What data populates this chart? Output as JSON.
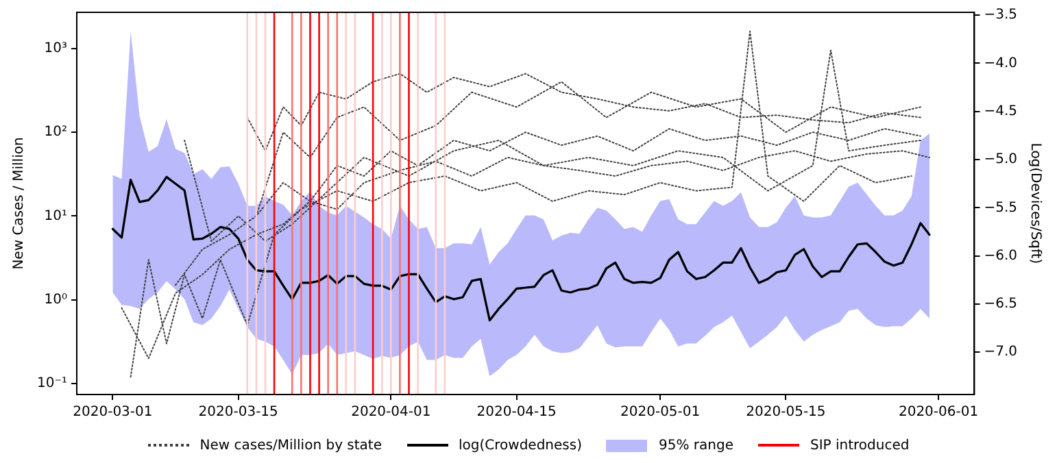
{
  "chart_data": {
    "type": "line",
    "xlabel": null,
    "ylabel": "New Cases / Million",
    "y2label": "Log(Devices/Sqft)",
    "x": [
      "2020-03-01",
      "2020-03-02",
      "2020-03-03",
      "2020-03-04",
      "2020-03-05",
      "2020-03-06",
      "2020-03-07",
      "2020-03-08",
      "2020-03-09",
      "2020-03-10",
      "2020-03-11",
      "2020-03-12",
      "2020-03-13",
      "2020-03-14",
      "2020-03-15",
      "2020-03-16",
      "2020-03-17",
      "2020-03-18",
      "2020-03-19",
      "2020-03-20",
      "2020-03-21",
      "2020-03-22",
      "2020-03-23",
      "2020-03-24",
      "2020-03-25",
      "2020-03-26",
      "2020-03-27",
      "2020-03-28",
      "2020-03-29",
      "2020-03-30",
      "2020-03-31",
      "2020-04-01",
      "2020-04-02",
      "2020-04-03",
      "2020-04-04",
      "2020-04-05",
      "2020-04-06",
      "2020-04-07",
      "2020-04-08",
      "2020-04-09",
      "2020-04-10",
      "2020-04-11",
      "2020-04-12",
      "2020-04-13",
      "2020-04-14",
      "2020-04-15",
      "2020-04-16",
      "2020-04-17",
      "2020-04-18",
      "2020-04-19",
      "2020-04-20",
      "2020-04-21",
      "2020-04-22",
      "2020-04-23",
      "2020-04-24",
      "2020-04-25",
      "2020-04-26",
      "2020-04-27",
      "2020-04-28",
      "2020-04-29",
      "2020-04-30",
      "2020-05-01",
      "2020-05-02",
      "2020-05-03",
      "2020-05-04",
      "2020-05-05",
      "2020-05-06",
      "2020-05-07",
      "2020-05-08",
      "2020-05-09",
      "2020-05-10",
      "2020-05-11",
      "2020-05-12",
      "2020-05-13",
      "2020-05-14",
      "2020-05-15",
      "2020-05-16",
      "2020-05-17",
      "2020-05-18",
      "2020-05-19",
      "2020-05-20",
      "2020-05-21",
      "2020-05-22",
      "2020-05-23",
      "2020-05-24",
      "2020-05-25",
      "2020-05-26",
      "2020-05-27",
      "2020-05-28",
      "2020-05-29",
      "2020-05-30",
      "2020-05-31"
    ],
    "series": [
      {
        "type": "line",
        "name": "New cases/Million by state",
        "color": "#404040",
        "line_style": "dotted",
        "x": [
          "2020-03-16",
          "2020-03-18",
          "2020-03-20",
          "2020-03-22",
          "2020-03-24",
          "2020-03-27",
          "2020-03-30",
          "2020-04-02",
          "2020-04-05",
          "2020-04-08",
          "2020-04-12",
          "2020-04-16",
          "2020-04-20",
          "2020-04-24",
          "2020-04-28",
          "2020-05-02",
          "2020-05-06",
          "2020-05-10",
          "2020-05-14",
          "2020-05-18",
          "2020-05-22",
          "2020-05-26",
          "2020-05-30"
        ],
        "values": [
          150,
          60,
          200,
          120,
          300,
          250,
          400,
          500,
          300,
          450,
          350,
          500,
          300,
          250,
          200,
          180,
          220,
          150,
          160,
          140,
          130,
          170,
          150
        ]
      },
      {
        "type": "line",
        "color": "#404040",
        "line_style": "dotted",
        "x": [
          "2020-03-08",
          "2020-03-11",
          "2020-03-14",
          "2020-03-17",
          "2020-03-20",
          "2020-03-23",
          "2020-03-26",
          "2020-03-29",
          "2020-04-01",
          "2020-04-04",
          "2020-04-08",
          "2020-04-12",
          "2020-04-16",
          "2020-04-20",
          "2020-04-24",
          "2020-04-28",
          "2020-05-02",
          "2020-05-06",
          "2020-05-10",
          "2020-05-14",
          "2020-05-18",
          "2020-05-22",
          "2020-05-26",
          "2020-05-30"
        ],
        "values": [
          1.5,
          4,
          6,
          10,
          25,
          15,
          40,
          30,
          60,
          40,
          80,
          60,
          100,
          70,
          90,
          60,
          110,
          80,
          90,
          70,
          100,
          80,
          110,
          90
        ]
      },
      {
        "type": "line",
        "color": "#404040",
        "line_style": "dotted",
        "x": [
          "2020-03-02",
          "2020-03-05",
          "2020-03-08",
          "2020-03-11",
          "2020-03-14",
          "2020-03-17",
          "2020-03-20",
          "2020-03-23",
          "2020-03-26",
          "2020-03-29",
          "2020-04-02",
          "2020-04-06",
          "2020-04-10",
          "2020-04-14",
          "2020-04-18",
          "2020-04-22",
          "2020-04-26",
          "2020-04-30",
          "2020-05-04",
          "2020-05-08",
          "2020-05-12",
          "2020-05-16",
          "2020-05-20",
          "2020-05-24",
          "2020-05-28",
          "2020-05-31"
        ],
        "values": [
          0.8,
          0.2,
          1.2,
          2,
          4,
          6,
          8,
          15,
          12,
          25,
          35,
          45,
          30,
          50,
          40,
          35,
          30,
          40,
          45,
          35,
          50,
          60,
          45,
          55,
          60,
          50
        ]
      },
      {
        "type": "line",
        "color": "#404040",
        "line_style": "dotted",
        "x": [
          "2020-03-03",
          "2020-03-05",
          "2020-03-07",
          "2020-03-09",
          "2020-03-11",
          "2020-03-13",
          "2020-03-16",
          "2020-03-19",
          "2020-03-22",
          "2020-03-26",
          "2020-03-30",
          "2020-04-03",
          "2020-04-07",
          "2020-04-11",
          "2020-04-15",
          "2020-04-19",
          "2020-04-23",
          "2020-04-27",
          "2020-05-01",
          "2020-05-05",
          "2020-05-09",
          "2020-05-11",
          "2020-05-13",
          "2020-05-17",
          "2020-05-21",
          "2020-05-25",
          "2020-05-29"
        ],
        "values": [
          0.12,
          3,
          0.3,
          2,
          0.6,
          3,
          0.5,
          6,
          12,
          20,
          15,
          25,
          30,
          20,
          25,
          15,
          20,
          18,
          25,
          20,
          22,
          1600,
          30,
          15,
          40,
          25,
          30
        ]
      },
      {
        "type": "line",
        "color": "#404040",
        "line_style": "dotted",
        "x": [
          "2020-03-09",
          "2020-03-12",
          "2020-03-15",
          "2020-03-18",
          "2020-03-21",
          "2020-03-25",
          "2020-03-29",
          "2020-04-03",
          "2020-04-08",
          "2020-04-13",
          "2020-04-18",
          "2020-04-23",
          "2020-04-28",
          "2020-05-03",
          "2020-05-08",
          "2020-05-13",
          "2020-05-18",
          "2020-05-20",
          "2020-05-22",
          "2020-05-26",
          "2020-05-30"
        ],
        "values": [
          80,
          5,
          10,
          5,
          8,
          20,
          50,
          30,
          60,
          80,
          40,
          50,
          40,
          60,
          50,
          20,
          40,
          950,
          60,
          70,
          80
        ]
      },
      {
        "type": "line",
        "color": "#404040",
        "line_style": "dotted",
        "x": [
          "2020-03-17",
          "2020-03-20",
          "2020-03-23",
          "2020-03-26",
          "2020-03-29",
          "2020-04-02",
          "2020-04-06",
          "2020-04-10",
          "2020-04-15",
          "2020-04-20",
          "2020-04-25",
          "2020-04-30",
          "2020-05-05",
          "2020-05-10",
          "2020-05-15",
          "2020-05-20",
          "2020-05-25",
          "2020-05-30"
        ],
        "values": [
          10,
          100,
          50,
          150,
          200,
          80,
          120,
          300,
          200,
          400,
          150,
          300,
          200,
          250,
          100,
          200,
          150,
          200
        ]
      },
      {
        "type": "line",
        "name": "log(Crowdedness)",
        "color": "#000000",
        "axis": "y2",
        "line_style": "solid",
        "values": [
          -5.72,
          -5.81,
          -5.21,
          -5.44,
          -5.42,
          -5.32,
          -5.18,
          -5.25,
          -5.32,
          -5.83,
          -5.82,
          -5.77,
          -5.7,
          -5.72,
          -5.82,
          -6.04,
          -6.15,
          -6.16,
          -6.16,
          -6.31,
          -6.45,
          -6.28,
          -6.28,
          -6.26,
          -6.2,
          -6.29,
          -6.21,
          -6.21,
          -6.29,
          -6.31,
          -6.31,
          -6.35,
          -6.21,
          -6.19,
          -6.19,
          -6.34,
          -6.48,
          -6.42,
          -6.45,
          -6.43,
          -6.26,
          -6.24,
          -6.67,
          -6.55,
          -6.45,
          -6.34,
          -6.33,
          -6.32,
          -6.2,
          -6.15,
          -6.36,
          -6.38,
          -6.35,
          -6.34,
          -6.3,
          -6.13,
          -6.07,
          -6.24,
          -6.28,
          -6.27,
          -6.28,
          -6.23,
          -6.04,
          -5.96,
          -6.16,
          -6.24,
          -6.22,
          -6.15,
          -6.07,
          -6.07,
          -5.92,
          -6.12,
          -6.28,
          -6.24,
          -6.17,
          -6.15,
          -5.99,
          -5.93,
          -6.11,
          -6.22,
          -6.16,
          -6.16,
          -6.01,
          -5.88,
          -5.87,
          -5.96,
          -6.06,
          -6.1,
          -6.07,
          -5.88,
          -5.66,
          -5.78
        ],
        "upper": [
          -5.16,
          -5.2,
          -3.67,
          -4.55,
          -4.92,
          -4.86,
          -4.58,
          -4.89,
          -4.93,
          -5.15,
          -5.1,
          -5.2,
          -5.08,
          -5.07,
          -5.25,
          -5.48,
          -5.48,
          -5.38,
          -5.43,
          -5.47,
          -5.58,
          -5.43,
          -5.33,
          -5.48,
          -5.55,
          -5.58,
          -5.48,
          -5.54,
          -5.6,
          -5.67,
          -5.72,
          -5.82,
          -5.48,
          -5.62,
          -5.72,
          -5.7,
          -5.92,
          -5.92,
          -5.87,
          -5.87,
          -5.88,
          -5.7,
          -6.09,
          -5.96,
          -5.87,
          -5.72,
          -5.58,
          -5.58,
          -5.62,
          -5.84,
          -5.79,
          -5.76,
          -5.77,
          -5.62,
          -5.5,
          -5.53,
          -5.62,
          -5.72,
          -5.7,
          -5.75,
          -5.58,
          -5.43,
          -5.41,
          -5.62,
          -5.67,
          -5.67,
          -5.55,
          -5.43,
          -5.48,
          -5.43,
          -5.34,
          -5.6,
          -5.7,
          -5.7,
          -5.65,
          -5.5,
          -5.38,
          -5.58,
          -5.6,
          -5.6,
          -5.58,
          -5.43,
          -5.28,
          -5.24,
          -5.36,
          -5.48,
          -5.58,
          -5.58,
          -5.53,
          -5.38,
          -4.8,
          -4.73
        ],
        "lower": [
          -6.38,
          -6.51,
          -6.52,
          -6.55,
          -6.45,
          -6.38,
          -6.26,
          -6.35,
          -6.45,
          -6.69,
          -6.72,
          -6.65,
          -6.52,
          -6.35,
          -6.55,
          -6.74,
          -6.86,
          -6.89,
          -6.94,
          -7.08,
          -7.23,
          -7.03,
          -7.03,
          -7.01,
          -6.91,
          -7.03,
          -7.01,
          -6.99,
          -7.03,
          -7.07,
          -7.04,
          -7.06,
          -7.03,
          -6.94,
          -6.89,
          -7.08,
          -7.08,
          -7.03,
          -7.06,
          -7.06,
          -6.94,
          -6.86,
          -7.25,
          -7.18,
          -7.08,
          -7.03,
          -6.94,
          -6.82,
          -6.94,
          -6.99,
          -7.01,
          -7.0,
          -6.96,
          -6.84,
          -6.72,
          -6.91,
          -6.95,
          -6.94,
          -6.94,
          -6.94,
          -6.79,
          -6.65,
          -6.77,
          -6.94,
          -6.91,
          -6.91,
          -6.83,
          -6.74,
          -6.69,
          -6.62,
          -6.79,
          -6.96,
          -6.89,
          -6.82,
          -6.74,
          -6.62,
          -6.77,
          -6.89,
          -6.82,
          -6.77,
          -6.73,
          -6.69,
          -6.57,
          -6.55,
          -6.65,
          -6.72,
          -6.74,
          -6.73,
          -6.73,
          -6.65,
          -6.55,
          -6.65
        ]
      }
    ],
    "annotations": [
      "95% range"
    ],
    "ref_lines": [
      {
        "axis": "x",
        "value": "2020-03-16",
        "color": "#ffcccc"
      },
      {
        "axis": "x",
        "value": "2020-03-17",
        "color": "#ffcccc"
      },
      {
        "axis": "x",
        "value": "2020-03-18",
        "color": "#ffcccc"
      },
      {
        "axis": "x",
        "value": "2020-03-19",
        "color": "#ff0000",
        "label": "SIP introduced"
      },
      {
        "axis": "x",
        "value": "2020-03-21",
        "color": "#ff7070"
      },
      {
        "axis": "x",
        "value": "2020-03-22",
        "color": "#ff7070"
      },
      {
        "axis": "x",
        "value": "2020-03-23",
        "color": "#ff0000"
      },
      {
        "axis": "x",
        "value": "2020-03-24",
        "color": "#ff0000"
      },
      {
        "axis": "x",
        "value": "2020-03-25",
        "color": "#ff7070"
      },
      {
        "axis": "x",
        "value": "2020-03-26",
        "color": "#ff7070"
      },
      {
        "axis": "x",
        "value": "2020-03-27",
        "color": "#ffcccc"
      },
      {
        "axis": "x",
        "value": "2020-03-28",
        "color": "#ffcccc"
      },
      {
        "axis": "x",
        "value": "2020-03-30",
        "color": "#ff0000"
      },
      {
        "axis": "x",
        "value": "2020-03-31",
        "color": "#ffcccc"
      },
      {
        "axis": "x",
        "value": "2020-04-01",
        "color": "#ffcccc"
      },
      {
        "axis": "x",
        "value": "2020-04-02",
        "color": "#ff7070"
      },
      {
        "axis": "x",
        "value": "2020-04-03",
        "color": "#ff0000"
      },
      {
        "axis": "x",
        "value": "2020-04-04",
        "color": "#ffcccc"
      },
      {
        "axis": "x",
        "value": "2020-04-06",
        "color": "#ffcccc"
      },
      {
        "axis": "x",
        "value": "2020-04-07",
        "color": "#ffcccc"
      }
    ],
    "xlim": [
      "2020-02-26",
      "2020-06-05"
    ],
    "xticks": [
      "2020-03-01",
      "2020-03-15",
      "2020-04-01",
      "2020-04-15",
      "2020-05-01",
      "2020-05-15",
      "2020-06-01"
    ],
    "log": "y",
    "ylim": [
      0.074,
      2700
    ],
    "yticks": [
      {
        "value": 0.1,
        "label": "10⁻¹"
      },
      {
        "value": 1,
        "label": "10⁰"
      },
      {
        "value": 10,
        "label": "10¹"
      },
      {
        "value": 100,
        "label": "10²"
      },
      {
        "value": 1000,
        "label": "10³"
      }
    ],
    "y2lim": [
      -7.44,
      -3.47
    ],
    "y2ticks": [
      {
        "value": -7,
        "label": "−7.0"
      },
      {
        "value": -6.5,
        "label": "−6.5"
      },
      {
        "value": -6,
        "label": "−6.0"
      },
      {
        "value": -5.5,
        "label": "−5.5"
      },
      {
        "value": -5,
        "label": "−5.0"
      },
      {
        "value": -4.5,
        "label": "−4.5"
      },
      {
        "value": -4,
        "label": "−4.0"
      },
      {
        "value": -3.5,
        "label": "−3.5"
      }
    ],
    "grid": false,
    "legend": "bottom",
    "marker": "none"
  }
}
